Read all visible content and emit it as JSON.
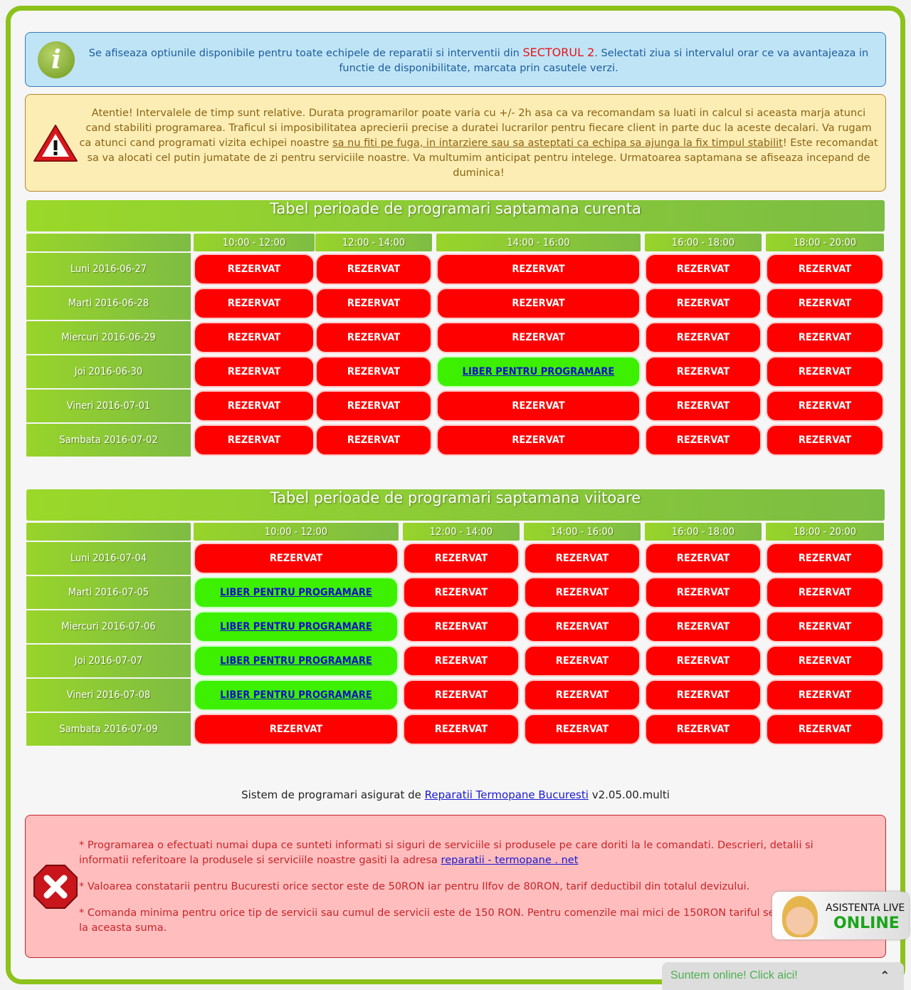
{
  "info": {
    "text_before": "Se afiseaza optiunile disponibile pentru toate echipele de reparatii si interventii din ",
    "sector": "SECTORUL 2",
    "text_after": ". Selectati ziua si intervalul orar ce va avantajeaza in functie de disponibilitate, marcata prin casutele verzi.",
    "icon": "info-icon"
  },
  "warning": {
    "text_before": "Atentie! Intervalele de timp sunt relative. Durata programarilor poate varia cu +/- 2h asa ca va recomandam sa luati in calcul si aceasta marja atunci cand stabiliti programarea. Traficul si imposibilitatea aprecierii precise a duratei lucrarilor pentru fiecare client in parte duc la aceste decalari. Va rugam ca atunci cand programati vizita echipei noastre ",
    "underlined": "sa nu fiti pe fuga, in intarziere sau sa asteptati ca echipa sa ajunga la fix timpul stabilit",
    "text_after": "! Este recomandat sa va alocati cel putin jumatate de zi pentru serviciile noastre. Va multumim anticipat pentru intelege. Urmatoarea saptamana se afiseaza incepand de duminica!",
    "icon": "warning-icon"
  },
  "tables": [
    {
      "title": "Tabel perioade de programari saptamana curenta",
      "headers": [
        "10:00 - 12:00",
        "12:00 - 14:00",
        "14:00 - 16:00",
        "16:00 - 18:00",
        "18:00 - 20:00"
      ],
      "rows": [
        {
          "day": "Luni 2016-06-27",
          "slots": [
            "REZERVAT",
            "REZERVAT",
            "REZERVAT",
            "REZERVAT",
            "REZERVAT"
          ]
        },
        {
          "day": "Marti 2016-06-28",
          "slots": [
            "REZERVAT",
            "REZERVAT",
            "REZERVAT",
            "REZERVAT",
            "REZERVAT"
          ]
        },
        {
          "day": "Miercuri 2016-06-29",
          "slots": [
            "REZERVAT",
            "REZERVAT",
            "REZERVAT",
            "REZERVAT",
            "REZERVAT"
          ]
        },
        {
          "day": "Joi 2016-06-30",
          "slots": [
            "REZERVAT",
            "REZERVAT",
            "LIBER PENTRU PROGRAMARE",
            "REZERVAT",
            "REZERVAT"
          ]
        },
        {
          "day": "Vineri 2016-07-01",
          "slots": [
            "REZERVAT",
            "REZERVAT",
            "REZERVAT",
            "REZERVAT",
            "REZERVAT"
          ]
        },
        {
          "day": "Sambata 2016-07-02",
          "slots": [
            "REZERVAT",
            "REZERVAT",
            "REZERVAT",
            "REZERVAT",
            "REZERVAT"
          ]
        }
      ]
    },
    {
      "title": "Tabel perioade de programari saptamana viitoare",
      "headers": [
        "10:00 - 12:00",
        "12:00 - 14:00",
        "14:00 - 16:00",
        "16:00 - 18:00",
        "18:00 - 20:00"
      ],
      "rows": [
        {
          "day": "Luni 2016-07-04",
          "slots": [
            "REZERVAT",
            "REZERVAT",
            "REZERVAT",
            "REZERVAT",
            "REZERVAT"
          ]
        },
        {
          "day": "Marti 2016-07-05",
          "slots": [
            "LIBER PENTRU PROGRAMARE",
            "REZERVAT",
            "REZERVAT",
            "REZERVAT",
            "REZERVAT"
          ]
        },
        {
          "day": "Miercuri 2016-07-06",
          "slots": [
            "LIBER PENTRU PROGRAMARE",
            "REZERVAT",
            "REZERVAT",
            "REZERVAT",
            "REZERVAT"
          ]
        },
        {
          "day": "Joi 2016-07-07",
          "slots": [
            "LIBER PENTRU PROGRAMARE",
            "REZERVAT",
            "REZERVAT",
            "REZERVAT",
            "REZERVAT"
          ]
        },
        {
          "day": "Vineri 2016-07-08",
          "slots": [
            "LIBER PENTRU PROGRAMARE",
            "REZERVAT",
            "REZERVAT",
            "REZERVAT",
            "REZERVAT"
          ]
        },
        {
          "day": "Sambata 2016-07-09",
          "slots": [
            "REZERVAT",
            "REZERVAT",
            "REZERVAT",
            "REZERVAT",
            "REZERVAT"
          ]
        }
      ]
    }
  ],
  "footer": {
    "prefix": "Sistem de programari asigurat de ",
    "link": "Reparatii Termopane Bucuresti",
    "suffix": " v2.05.00.multi"
  },
  "notes": {
    "n1_before": "* Programarea o efectuati numai dupa ce sunteti informati si siguri de serviciile si produsele pe care doriti la le comandati. Descrieri, detalii si informatii referitoare la produsele si serviciile noastre gasiti la adresa ",
    "n1_link": "reparatii - termopane . net",
    "n2": "* Valoarea constatarii pentru Bucuresti orice sector este de 50RON iar pentru Ilfov de 80RON, tarif deductibil din totalul devizului.",
    "n3": "* Comanda minima pentru orice tip de servicii sau cumul de servicii este de 150 RON. Pentru comenzile mai mici de 150RON tariful se rotunjeste la aceasta suma.",
    "icon": "error-x-icon"
  },
  "live": {
    "line1": "ASISTENTA LIVE",
    "line2": "ONLINE"
  },
  "chat": {
    "label": "Suntem online! Click aici!",
    "icon": "chevron-up-icon"
  },
  "colors": {
    "reserved": "#ff0000",
    "free": "#3cf000",
    "accent": "#8cc21a"
  }
}
